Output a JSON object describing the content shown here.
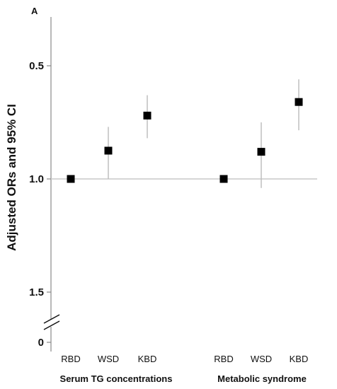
{
  "chart_data": {
    "type": "scatter",
    "panel_label": "A",
    "ylabel": "Adjusted ORs and 95% CI",
    "y_ticks": [
      "1.5",
      "1.0",
      "0.5",
      "0"
    ],
    "y_tick_values": [
      1.5,
      1.0,
      0.5,
      0
    ],
    "axis_break": true,
    "reference_line": 1.0,
    "ylim": [
      0.45,
      1.65
    ],
    "grid": false,
    "groups": [
      {
        "label": "Serum TG concentrations",
        "categories": [
          "RBD",
          "WSD",
          "KBD"
        ],
        "or": [
          1.0,
          0.875,
          0.72
        ],
        "ci_low": [
          1.0,
          0.77,
          0.63
        ],
        "ci_high": [
          1.0,
          1.0,
          0.82
        ]
      },
      {
        "label": "Metabolic syndrome",
        "categories": [
          "RBD",
          "WSD",
          "KBD"
        ],
        "or": [
          1.0,
          0.88,
          0.66
        ],
        "ci_low": [
          1.0,
          0.75,
          0.56
        ],
        "ci_high": [
          1.0,
          1.04,
          0.785
        ]
      }
    ],
    "colors": {
      "marker": "#000000",
      "whisker": "#bfbfbf",
      "axis": "#888888",
      "refline": "#c8c8c8"
    }
  }
}
